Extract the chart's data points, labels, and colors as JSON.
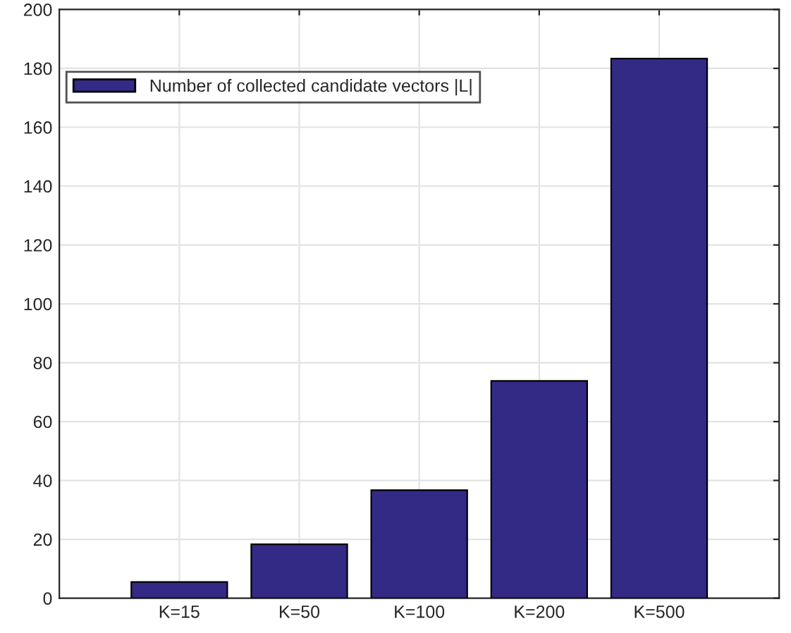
{
  "chart_data": {
    "type": "bar",
    "categories": [
      "K=15",
      "K=50",
      "K=100",
      "K=200",
      "K=500"
    ],
    "series": [
      {
        "name": "Number of collected candidate vectors |L|",
        "color": "#332a85",
        "values": [
          5.5,
          18.3,
          36.7,
          73.8,
          183.3
        ]
      }
    ],
    "ylim": [
      0,
      200
    ],
    "yticks": [
      0,
      20,
      40,
      60,
      80,
      100,
      120,
      140,
      160,
      180,
      200
    ],
    "grid": true,
    "legend": "top left"
  }
}
